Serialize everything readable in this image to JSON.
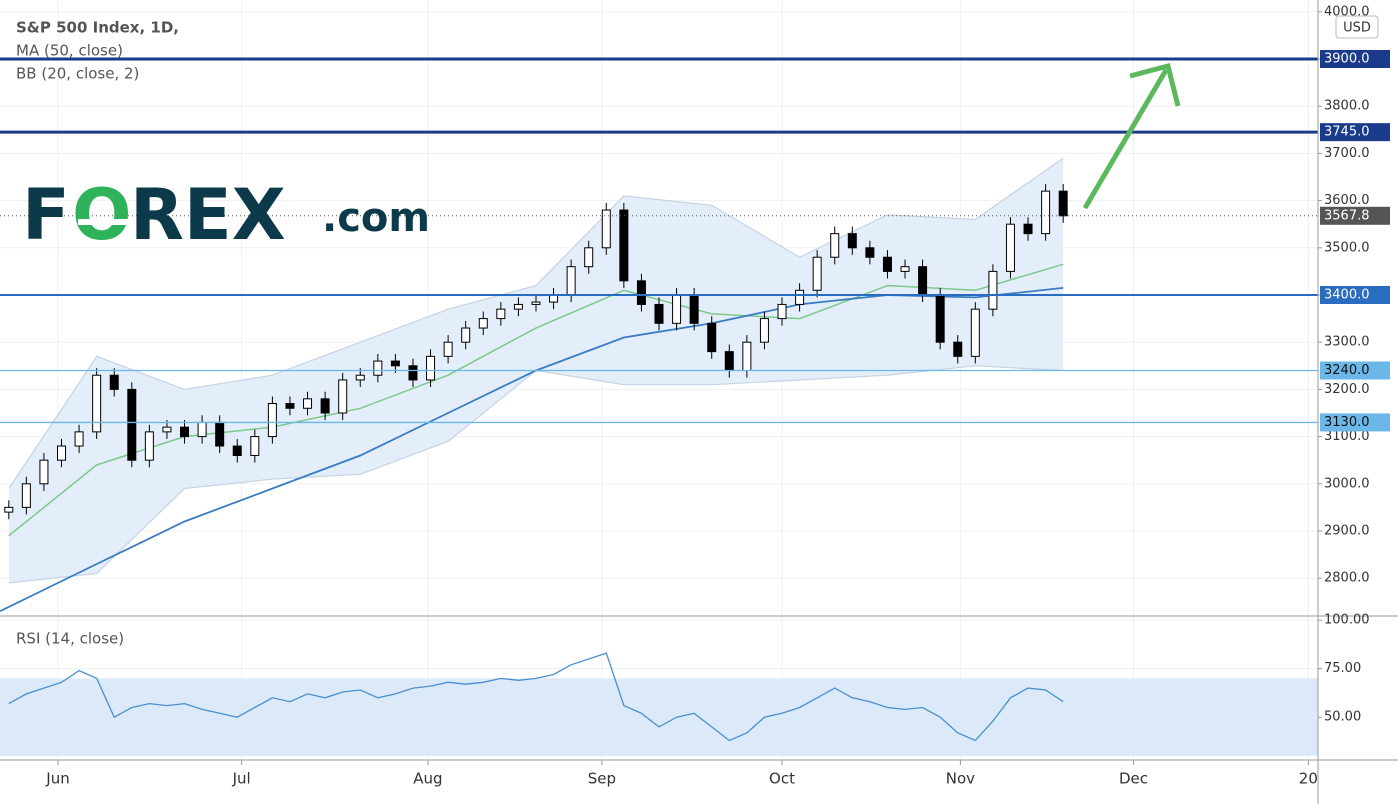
{
  "logo": {
    "first": "F",
    "middle": "O",
    "rest": "REX",
    "suffix": ".com"
  },
  "chart_data": [
    {
      "type": "candlestick",
      "title": "S&P 500 Index, 1D,",
      "currency": "USD",
      "x": [
        1,
        3,
        5,
        7,
        9,
        11,
        13,
        15,
        17,
        19,
        21,
        23,
        25,
        27,
        29,
        31,
        33,
        35,
        37,
        39,
        41,
        43,
        45,
        47,
        49,
        51,
        53,
        55,
        57,
        59,
        61,
        63,
        65,
        67,
        69,
        71,
        73,
        75,
        77,
        79,
        81,
        83,
        85,
        87,
        89,
        91,
        93,
        95,
        97,
        99,
        101,
        103,
        105,
        107,
        109,
        111,
        113,
        115,
        117,
        119,
        121
      ],
      "open": [
        2940,
        2950,
        3000,
        3050,
        3080,
        3110,
        3230,
        3200,
        3050,
        3110,
        3120,
        3100,
        3130,
        3080,
        3060,
        3100,
        3170,
        3160,
        3180,
        3150,
        3220,
        3230,
        3260,
        3250,
        3220,
        3270,
        3300,
        3330,
        3350,
        3370,
        3380,
        3385,
        3400,
        3460,
        3500,
        3580,
        3430,
        3380,
        3340,
        3400,
        3340,
        3280,
        3240,
        3300,
        3350,
        3380,
        3410,
        3480,
        3530,
        3500,
        3480,
        3450,
        3460,
        3400,
        3300,
        3270,
        3370,
        3450,
        3550,
        3530,
        3620
      ],
      "high": [
        2965,
        3015,
        3065,
        3095,
        3125,
        3245,
        3245,
        3215,
        3125,
        3135,
        3135,
        3145,
        3145,
        3095,
        3115,
        3185,
        3185,
        3195,
        3195,
        3235,
        3245,
        3275,
        3275,
        3265,
        3285,
        3315,
        3345,
        3365,
        3385,
        3395,
        3400,
        3415,
        3475,
        3515,
        3595,
        3595,
        3445,
        3395,
        3415,
        3415,
        3355,
        3295,
        3315,
        3365,
        3395,
        3425,
        3495,
        3545,
        3545,
        3515,
        3495,
        3475,
        3475,
        3415,
        3315,
        3385,
        3465,
        3565,
        3565,
        3635,
        3635
      ],
      "low": [
        2925,
        2935,
        2985,
        3035,
        3065,
        3095,
        3185,
        3035,
        3035,
        3095,
        3085,
        3085,
        3065,
        3045,
        3045,
        3085,
        3145,
        3145,
        3135,
        3135,
        3205,
        3215,
        3235,
        3205,
        3205,
        3255,
        3285,
        3315,
        3335,
        3355,
        3365,
        3370,
        3385,
        3445,
        3485,
        3415,
        3365,
        3325,
        3325,
        3325,
        3265,
        3225,
        3225,
        3285,
        3335,
        3365,
        3395,
        3465,
        3485,
        3465,
        3435,
        3435,
        3385,
        3285,
        3255,
        3255,
        3355,
        3435,
        3515,
        3515,
        3552.8
      ],
      "close": [
        2950,
        3000,
        3050,
        3080,
        3110,
        3230,
        3200,
        3050,
        3110,
        3120,
        3100,
        3130,
        3080,
        3060,
        3100,
        3170,
        3160,
        3180,
        3150,
        3220,
        3230,
        3260,
        3250,
        3220,
        3270,
        3300,
        3330,
        3350,
        3370,
        3380,
        3385,
        3400,
        3460,
        3500,
        3580,
        3430,
        3380,
        3340,
        3400,
        3340,
        3280,
        3240,
        3300,
        3350,
        3380,
        3410,
        3480,
        3530,
        3500,
        3480,
        3450,
        3460,
        3400,
        3300,
        3270,
        3370,
        3450,
        3550,
        3530,
        3620,
        3567.8
      ],
      "up_color": "#ffffff",
      "down_color": "#000000",
      "ma": {
        "name": "MA (50, close)",
        "color": "#3a7cc4",
        "x": [
          0,
          11,
          21,
          31,
          41,
          51,
          61,
          71,
          81,
          91,
          101,
          111,
          121
        ],
        "values": [
          2730,
          2830,
          2920,
          2990,
          3060,
          3150,
          3240,
          3310,
          3340,
          3380,
          3400,
          3395,
          3415
        ]
      },
      "bb": {
        "name": "BB (20, close, 2)",
        "color": "#7cc98a",
        "band_color": "#e3eefa",
        "edge_color": "#c7d3e3",
        "x": [
          1,
          11,
          21,
          31,
          41,
          51,
          61,
          71,
          81,
          91,
          101,
          111,
          121
        ],
        "basis": [
          2890,
          3040,
          3100,
          3120,
          3160,
          3230,
          3330,
          3410,
          3360,
          3350,
          3420,
          3410,
          3465
        ],
        "upper": [
          2990,
          3270,
          3200,
          3230,
          3300,
          3370,
          3420,
          3610,
          3590,
          3480,
          3570,
          3560,
          3690
        ],
        "lower": [
          2790,
          2810,
          2990,
          3010,
          3020,
          3090,
          3240,
          3210,
          3210,
          3220,
          3230,
          3250,
          3240
        ]
      },
      "levels": [
        {
          "value": 3900,
          "label": "3900.0",
          "color": "#1a3a8a",
          "text_color": "#ffffff"
        },
        {
          "value": 3745,
          "label": "3745.0",
          "color": "#1a3a8a",
          "text_color": "#ffffff"
        },
        {
          "value": 3400,
          "label": "3400.0",
          "color": "#2a6cc0",
          "text_color": "#ffffff"
        },
        {
          "value": 3240,
          "label": "3240.0",
          "color": "#6bb8e8",
          "text_color": "#111111"
        },
        {
          "value": 3130,
          "label": "3130.0",
          "color": "#6bb8e8",
          "text_color": "#111111"
        }
      ],
      "last_price": 3567.8,
      "xlim": [
        0,
        150
      ],
      "ylim": [
        2722,
        4025
      ],
      "yticks": [
        {
          "value": 2800,
          "label": "2800.0"
        },
        {
          "value": 2900,
          "label": "2900.0"
        },
        {
          "value": 3000,
          "label": "3000.0"
        },
        {
          "value": 3100,
          "label": "3100.0"
        },
        {
          "value": 3200,
          "label": "3200.0"
        },
        {
          "value": 3300,
          "label": "3300.0"
        },
        {
          "value": 3400,
          "label": "3400.0"
        },
        {
          "value": 3500,
          "label": "3500.0"
        },
        {
          "value": 3600,
          "label": "3600.0"
        },
        {
          "value": 3700,
          "label": "3700.0"
        },
        {
          "value": 3800,
          "label": "3800.0"
        },
        {
          "value": 3900,
          "label": "3900.0"
        },
        {
          "value": 4000,
          "label": "4000.0"
        }
      ],
      "xticks": [
        {
          "value": 6.6,
          "label": "Jun"
        },
        {
          "value": 27.5,
          "label": "Jul"
        },
        {
          "value": 48.7,
          "label": "Aug"
        },
        {
          "value": 68.5,
          "label": "Sep"
        },
        {
          "value": 89,
          "label": "Oct"
        },
        {
          "value": 109.3,
          "label": "Nov"
        },
        {
          "value": 129,
          "label": "Dec"
        },
        {
          "value": 148.9,
          "label": "20"
        }
      ],
      "grid": true
    },
    {
      "type": "line",
      "title": "RSI (14, close)",
      "color": "#4a8fd0",
      "band": [
        30,
        70
      ],
      "band_color": "#dbe9f8",
      "x": [
        1,
        3,
        5,
        7,
        9,
        11,
        13,
        15,
        17,
        19,
        21,
        23,
        25,
        27,
        29,
        31,
        33,
        35,
        37,
        39,
        41,
        43,
        45,
        47,
        49,
        51,
        53,
        55,
        57,
        59,
        61,
        63,
        65,
        67,
        69,
        71,
        73,
        75,
        77,
        79,
        81,
        83,
        85,
        87,
        89,
        91,
        93,
        95,
        97,
        99,
        101,
        103,
        105,
        107,
        109,
        111,
        113,
        115,
        117,
        119,
        121
      ],
      "values": [
        57,
        62,
        65,
        68,
        74,
        70,
        50,
        55,
        57,
        56,
        57,
        54,
        52,
        50,
        55,
        60,
        58,
        62,
        60,
        63,
        64,
        60,
        62,
        65,
        66,
        68,
        67,
        68,
        70,
        69,
        70,
        72,
        77,
        80,
        83,
        56,
        52,
        45,
        50,
        52,
        45,
        38,
        42,
        50,
        52,
        55,
        60,
        65,
        60,
        58,
        55,
        54,
        55,
        50,
        42,
        38,
        48,
        60,
        65,
        64,
        58
      ],
      "xlim": [
        0,
        150
      ],
      "ylim": [
        29,
        101.6
      ],
      "yticks": [
        {
          "value": 50,
          "label": "50.00"
        },
        {
          "value": 75,
          "label": "75.00"
        },
        {
          "value": 100,
          "label": "100.00"
        }
      ]
    }
  ]
}
